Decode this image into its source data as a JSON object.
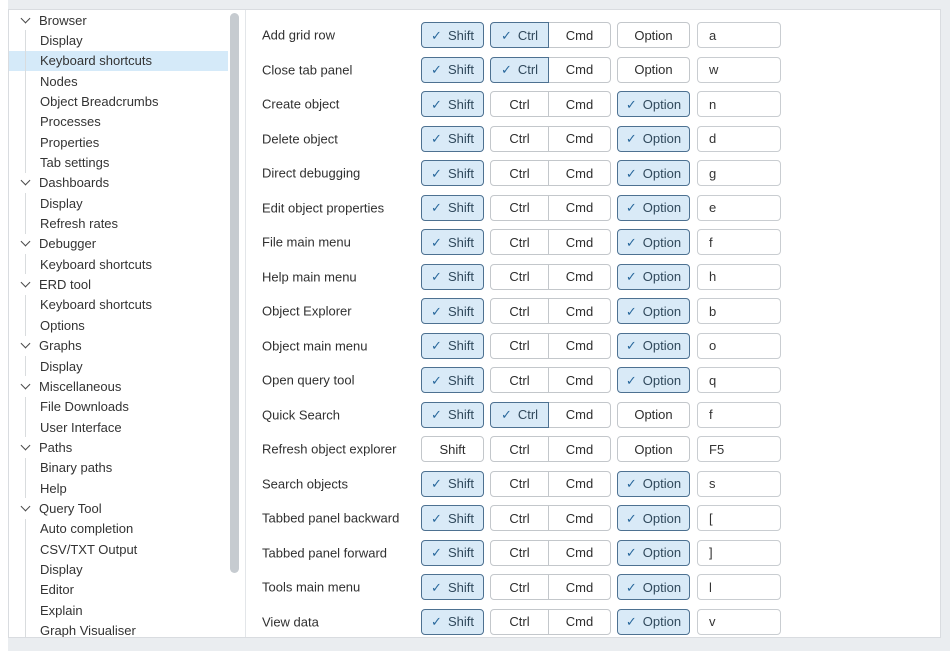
{
  "icons": {
    "check": "✓",
    "chevron": "chevron-down"
  },
  "colors": {
    "checked_fill": "#d9eaf7",
    "checked_border": "#4d7191",
    "check_mark": "#29689c",
    "selected_tree_row": "#d5eaf9"
  },
  "sidebar": {
    "groups": [
      {
        "label": "Browser",
        "children": [
          {
            "label": "Display",
            "selected": false
          },
          {
            "label": "Keyboard shortcuts",
            "selected": true
          },
          {
            "label": "Nodes",
            "selected": false
          },
          {
            "label": "Object Breadcrumbs",
            "selected": false
          },
          {
            "label": "Processes",
            "selected": false
          },
          {
            "label": "Properties",
            "selected": false
          },
          {
            "label": "Tab settings",
            "selected": false
          }
        ]
      },
      {
        "label": "Dashboards",
        "children": [
          {
            "label": "Display",
            "selected": false
          },
          {
            "label": "Refresh rates",
            "selected": false
          }
        ]
      },
      {
        "label": "Debugger",
        "children": [
          {
            "label": "Keyboard shortcuts",
            "selected": false
          }
        ]
      },
      {
        "label": "ERD tool",
        "children": [
          {
            "label": "Keyboard shortcuts",
            "selected": false
          },
          {
            "label": "Options",
            "selected": false
          }
        ]
      },
      {
        "label": "Graphs",
        "children": [
          {
            "label": "Display",
            "selected": false
          }
        ]
      },
      {
        "label": "Miscellaneous",
        "children": [
          {
            "label": "File Downloads",
            "selected": false
          },
          {
            "label": "User Interface",
            "selected": false
          }
        ]
      },
      {
        "label": "Paths",
        "children": [
          {
            "label": "Binary paths",
            "selected": false
          },
          {
            "label": "Help",
            "selected": false
          }
        ]
      },
      {
        "label": "Query Tool",
        "children": [
          {
            "label": "Auto completion",
            "selected": false
          },
          {
            "label": "CSV/TXT Output",
            "selected": false
          },
          {
            "label": "Display",
            "selected": false
          },
          {
            "label": "Editor",
            "selected": false
          },
          {
            "label": "Explain",
            "selected": false
          },
          {
            "label": "Graph Visualiser",
            "selected": false
          }
        ]
      }
    ]
  },
  "shortcuts": {
    "modifier_labels": {
      "shift": "Shift",
      "ctrl": "Ctrl",
      "cmd": "Cmd",
      "option": "Option"
    },
    "rows": [
      {
        "label": "Add grid row",
        "shift": true,
        "ctrl": true,
        "cmd": false,
        "option": false,
        "key": "a"
      },
      {
        "label": "Close tab panel",
        "shift": true,
        "ctrl": true,
        "cmd": false,
        "option": false,
        "key": "w"
      },
      {
        "label": "Create object",
        "shift": true,
        "ctrl": false,
        "cmd": false,
        "option": true,
        "key": "n"
      },
      {
        "label": "Delete object",
        "shift": true,
        "ctrl": false,
        "cmd": false,
        "option": true,
        "key": "d"
      },
      {
        "label": "Direct debugging",
        "shift": true,
        "ctrl": false,
        "cmd": false,
        "option": true,
        "key": "g"
      },
      {
        "label": "Edit object properties",
        "shift": true,
        "ctrl": false,
        "cmd": false,
        "option": true,
        "key": "e"
      },
      {
        "label": "File main menu",
        "shift": true,
        "ctrl": false,
        "cmd": false,
        "option": true,
        "key": "f"
      },
      {
        "label": "Help main menu",
        "shift": true,
        "ctrl": false,
        "cmd": false,
        "option": true,
        "key": "h"
      },
      {
        "label": "Object Explorer",
        "shift": true,
        "ctrl": false,
        "cmd": false,
        "option": true,
        "key": "b"
      },
      {
        "label": "Object main menu",
        "shift": true,
        "ctrl": false,
        "cmd": false,
        "option": true,
        "key": "o"
      },
      {
        "label": "Open query tool",
        "shift": true,
        "ctrl": false,
        "cmd": false,
        "option": true,
        "key": "q"
      },
      {
        "label": "Quick Search",
        "shift": true,
        "ctrl": true,
        "cmd": false,
        "option": false,
        "key": "f"
      },
      {
        "label": "Refresh object explorer",
        "shift": false,
        "ctrl": false,
        "cmd": false,
        "option": false,
        "key": "F5"
      },
      {
        "label": "Search objects",
        "shift": true,
        "ctrl": false,
        "cmd": false,
        "option": true,
        "key": "s"
      },
      {
        "label": "Tabbed panel backward",
        "shift": true,
        "ctrl": false,
        "cmd": false,
        "option": true,
        "key": "["
      },
      {
        "label": "Tabbed panel forward",
        "shift": true,
        "ctrl": false,
        "cmd": false,
        "option": true,
        "key": "]"
      },
      {
        "label": "Tools main menu",
        "shift": true,
        "ctrl": false,
        "cmd": false,
        "option": true,
        "key": "l"
      },
      {
        "label": "View data",
        "shift": true,
        "ctrl": false,
        "cmd": false,
        "option": true,
        "key": "v"
      }
    ]
  }
}
